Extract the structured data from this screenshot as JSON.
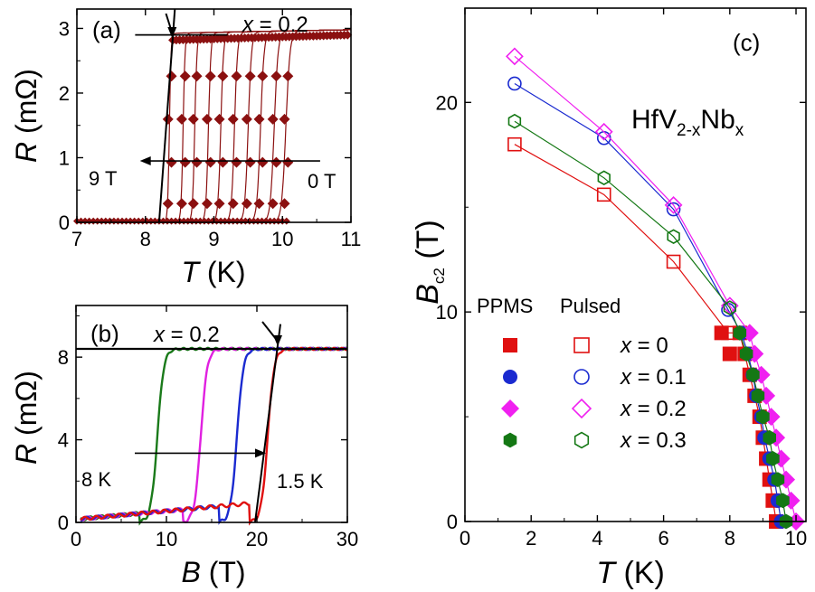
{
  "chart_data": [
    {
      "panel": "(a)",
      "type": "line",
      "xlabel": {
        "sym": "T",
        "unit": " (K)"
      },
      "ylabel": {
        "sym": "R",
        "unit": " (mΩ)"
      },
      "xlim": [
        7,
        11
      ],
      "ylim": [
        0,
        3.3
      ],
      "xticks": [
        "7",
        "8",
        "9",
        "10",
        "11"
      ],
      "yticks": [
        "0",
        "1",
        "2",
        "3"
      ],
      "annotations": {
        "x": "x = 0.2",
        "left": "9 T",
        "right": "0 T"
      },
      "series_color": "#8b1010",
      "plateau_value": 2.9,
      "transition_midpoints_K": [
        8.35,
        8.55,
        8.72,
        8.92,
        9.1,
        9.3,
        9.5,
        9.68,
        9.88,
        10.05
      ],
      "series": [
        {
          "values": [
            [
              7.0,
              0
            ],
            [
              8.3,
              0
            ],
            [
              8.4,
              2.75
            ],
            [
              9.0,
              2.85
            ],
            [
              11.0,
              2.92
            ]
          ]
        }
      ]
    },
    {
      "panel": "(b)",
      "type": "line",
      "xlabel": {
        "sym": "B",
        "unit": " (T)"
      },
      "ylabel": {
        "sym": "R",
        "unit": " (mΩ)"
      },
      "xlim": [
        0,
        30
      ],
      "ylim": [
        0,
        10.5
      ],
      "xticks": [
        "0",
        "10",
        "20",
        "30"
      ],
      "yticks": [
        "0",
        "4",
        "8"
      ],
      "annotations": {
        "x": "x = 0.2",
        "left": "8 K",
        "right": "1.5 K"
      },
      "plateau_value": 8.4,
      "series": [
        {
          "color": "#1a7a1a",
          "midpoint": 9.0
        },
        {
          "color": "#e020e0",
          "midpoint": 13.8
        },
        {
          "color": "#1a2ad0",
          "midpoint": 17.8
        },
        {
          "color": "#e01010",
          "midpoint": 21.2
        }
      ]
    },
    {
      "panel": "(c)",
      "type": "scatter",
      "xlabel": {
        "sym": "T",
        "unit": " (K)"
      },
      "ylabel": {
        "sym": "B",
        "sub": "c2",
        "unit": " (T)"
      },
      "xlim": [
        0,
        10.3
      ],
      "ylim": [
        0,
        24.5
      ],
      "xticks": [
        "0",
        "2",
        "4",
        "6",
        "8",
        "10"
      ],
      "yticks": [
        "0",
        "10",
        "20"
      ],
      "compound": {
        "main": "HfV",
        "sub": "2-x",
        "mid": "Nb",
        "sub2": "x"
      },
      "legend_headers": [
        "PPMS",
        "Pulsed"
      ],
      "series": [
        {
          "name": "x = 0",
          "color": "#e01010",
          "marker": "square",
          "ppms": [
            [
              9.4,
              0
            ],
            [
              9.3,
              1
            ],
            [
              9.2,
              2
            ],
            [
              9.1,
              3
            ],
            [
              9.0,
              4
            ],
            [
              8.9,
              5
            ],
            [
              8.75,
              6
            ],
            [
              8.6,
              7
            ],
            [
              8.45,
              8
            ],
            [
              8.3,
              9
            ],
            [
              7.75,
              9
            ],
            [
              8.0,
              8
            ]
          ],
          "pulsed": [
            [
              1.5,
              18.0
            ],
            [
              4.2,
              15.6
            ],
            [
              6.3,
              12.4
            ],
            [
              7.95,
              9.0
            ]
          ]
        },
        {
          "name": "x = 0.1",
          "color": "#1a2ad0",
          "marker": "circle",
          "ppms": [
            [
              9.55,
              0
            ],
            [
              9.45,
              1
            ],
            [
              9.35,
              2
            ],
            [
              9.2,
              3
            ],
            [
              9.05,
              4
            ],
            [
              8.95,
              5
            ],
            [
              8.8,
              6
            ],
            [
              8.7,
              7
            ],
            [
              8.55,
              8
            ],
            [
              8.35,
              9
            ]
          ],
          "pulsed": [
            [
              1.5,
              20.9
            ],
            [
              4.2,
              18.3
            ],
            [
              6.3,
              14.9
            ],
            [
              7.95,
              10.1
            ]
          ]
        },
        {
          "name": "x = 0.2",
          "color": "#f020f0",
          "marker": "diamond",
          "ppms": [
            [
              10.0,
              0
            ],
            [
              9.85,
              1
            ],
            [
              9.7,
              2
            ],
            [
              9.55,
              3
            ],
            [
              9.4,
              4
            ],
            [
              9.25,
              5
            ],
            [
              9.1,
              6
            ],
            [
              8.95,
              7
            ],
            [
              8.75,
              8
            ],
            [
              8.6,
              9
            ]
          ],
          "pulsed": [
            [
              1.5,
              22.2
            ],
            [
              4.2,
              18.6
            ],
            [
              6.3,
              15.1
            ],
            [
              8.0,
              10.3
            ]
          ]
        },
        {
          "name": "x = 0.3",
          "color": "#147814",
          "marker": "hexagon",
          "ppms": [
            [
              9.7,
              0
            ],
            [
              9.6,
              1
            ],
            [
              9.45,
              2
            ],
            [
              9.3,
              3
            ],
            [
              9.2,
              4
            ],
            [
              9.0,
              5
            ],
            [
              8.85,
              6
            ],
            [
              8.7,
              7
            ],
            [
              8.5,
              8
            ],
            [
              8.3,
              9
            ]
          ],
          "pulsed": [
            [
              1.5,
              19.1
            ],
            [
              4.2,
              16.4
            ],
            [
              6.3,
              13.6
            ],
            [
              8.0,
              10.2
            ]
          ]
        }
      ]
    }
  ]
}
